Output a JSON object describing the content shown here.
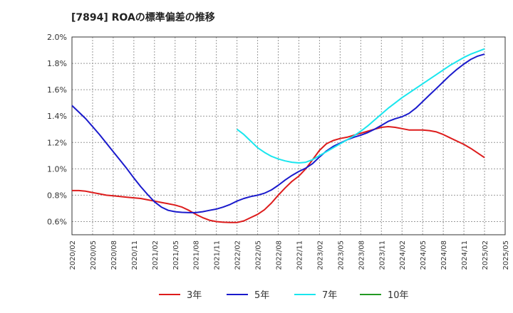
{
  "chart_data": {
    "type": "line",
    "title": "[7894]  ROAの標準偏差の推移",
    "xlabel": "",
    "ylabel": "",
    "ylim": [
      0.5,
      2.0
    ],
    "y_ticks": [
      0.6,
      0.8,
      1.0,
      1.2,
      1.4,
      1.6,
      1.8,
      2.0
    ],
    "y_tick_labels": [
      "0.6%",
      "0.8%",
      "1.0%",
      "1.2%",
      "1.4%",
      "1.6%",
      "1.8%",
      "2.0%"
    ],
    "x_tick_labels": [
      "2020/02",
      "2020/05",
      "2020/08",
      "2020/11",
      "2021/02",
      "2021/05",
      "2021/08",
      "2021/11",
      "2022/02",
      "2022/05",
      "2022/08",
      "2022/11",
      "2023/02",
      "2023/05",
      "2023/08",
      "2023/11",
      "2024/02",
      "2024/05",
      "2024/08",
      "2024/11",
      "2025/02",
      "2025/05"
    ],
    "grid": true,
    "legend_position": "bottom",
    "series": [
      {
        "name": "3年",
        "color": "#dd1c1c",
        "x": [
          "2020/02",
          "2020/03",
          "2020/04",
          "2020/05",
          "2020/06",
          "2020/07",
          "2020/08",
          "2020/09",
          "2020/10",
          "2020/11",
          "2020/12",
          "2021/01",
          "2021/02",
          "2021/03",
          "2021/04",
          "2021/05",
          "2021/06",
          "2021/07",
          "2021/08",
          "2021/09",
          "2021/10",
          "2021/11",
          "2021/12",
          "2022/01",
          "2022/02",
          "2022/03",
          "2022/04",
          "2022/05",
          "2022/06",
          "2022/07",
          "2022/08",
          "2022/09",
          "2022/10",
          "2022/11",
          "2022/12",
          "2023/01",
          "2023/02",
          "2023/03",
          "2023/04",
          "2023/05",
          "2023/06",
          "2023/07",
          "2023/08",
          "2023/09",
          "2023/10",
          "2023/11",
          "2023/12",
          "2024/01",
          "2024/02",
          "2024/03",
          "2024/04",
          "2024/05",
          "2024/06",
          "2024/07",
          "2024/08",
          "2024/09",
          "2024/10",
          "2024/11",
          "2024/12",
          "2025/01",
          "2025/02"
        ],
        "values": [
          0.835,
          0.835,
          0.83,
          0.82,
          0.81,
          0.8,
          0.795,
          0.79,
          0.785,
          0.78,
          0.775,
          0.765,
          0.755,
          0.745,
          0.735,
          0.725,
          0.71,
          0.685,
          0.655,
          0.63,
          0.61,
          0.6,
          0.595,
          0.593,
          0.593,
          0.605,
          0.63,
          0.655,
          0.69,
          0.74,
          0.8,
          0.855,
          0.905,
          0.945,
          1.0,
          1.07,
          1.14,
          1.19,
          1.215,
          1.23,
          1.24,
          1.255,
          1.27,
          1.285,
          1.3,
          1.315,
          1.32,
          1.315,
          1.305,
          1.295,
          1.295,
          1.295,
          1.29,
          1.28,
          1.26,
          1.235,
          1.21,
          1.185,
          1.155,
          1.12,
          1.085
        ]
      },
      {
        "name": "5年",
        "color": "#1a1acc",
        "x": [
          "2020/02",
          "2020/03",
          "2020/04",
          "2020/05",
          "2020/06",
          "2020/07",
          "2020/08",
          "2020/09",
          "2020/10",
          "2020/11",
          "2020/12",
          "2021/01",
          "2021/02",
          "2021/03",
          "2021/04",
          "2021/05",
          "2021/06",
          "2021/07",
          "2021/08",
          "2021/09",
          "2021/10",
          "2021/11",
          "2021/12",
          "2022/01",
          "2022/02",
          "2022/03",
          "2022/04",
          "2022/05",
          "2022/06",
          "2022/07",
          "2022/08",
          "2022/09",
          "2022/10",
          "2022/11",
          "2022/12",
          "2023/01",
          "2023/02",
          "2023/03",
          "2023/04",
          "2023/05",
          "2023/06",
          "2023/07",
          "2023/08",
          "2023/09",
          "2023/10",
          "2023/11",
          "2023/12",
          "2024/01",
          "2024/02",
          "2024/03",
          "2024/04",
          "2024/05",
          "2024/06",
          "2024/07",
          "2024/08",
          "2024/09",
          "2024/10",
          "2024/11",
          "2024/12",
          "2025/01",
          "2025/02"
        ],
        "values": [
          1.48,
          1.43,
          1.38,
          1.32,
          1.26,
          1.195,
          1.13,
          1.065,
          1.0,
          0.93,
          0.865,
          0.805,
          0.75,
          0.71,
          0.685,
          0.675,
          0.67,
          0.668,
          0.668,
          0.675,
          0.685,
          0.695,
          0.71,
          0.73,
          0.755,
          0.775,
          0.79,
          0.8,
          0.815,
          0.84,
          0.875,
          0.915,
          0.95,
          0.98,
          1.005,
          1.04,
          1.09,
          1.135,
          1.17,
          1.195,
          1.22,
          1.24,
          1.255,
          1.275,
          1.3,
          1.33,
          1.36,
          1.38,
          1.395,
          1.42,
          1.46,
          1.51,
          1.56,
          1.61,
          1.66,
          1.71,
          1.755,
          1.795,
          1.83,
          1.855,
          1.87
        ]
      },
      {
        "name": "7年",
        "color": "#1ae6ee",
        "x": [
          "2022/02",
          "2022/03",
          "2022/04",
          "2022/05",
          "2022/06",
          "2022/07",
          "2022/08",
          "2022/09",
          "2022/10",
          "2022/11",
          "2022/12",
          "2023/01",
          "2023/02",
          "2023/03",
          "2023/04",
          "2023/05",
          "2023/06",
          "2023/07",
          "2023/08",
          "2023/09",
          "2023/10",
          "2023/11",
          "2023/12",
          "2024/01",
          "2024/02",
          "2024/03",
          "2024/04",
          "2024/05",
          "2024/06",
          "2024/07",
          "2024/08",
          "2024/09",
          "2024/10",
          "2024/11",
          "2024/12",
          "2025/01",
          "2025/02"
        ],
        "values": [
          1.3,
          1.26,
          1.21,
          1.16,
          1.125,
          1.095,
          1.075,
          1.06,
          1.05,
          1.045,
          1.05,
          1.07,
          1.1,
          1.13,
          1.16,
          1.19,
          1.22,
          1.25,
          1.285,
          1.325,
          1.37,
          1.415,
          1.46,
          1.5,
          1.54,
          1.575,
          1.61,
          1.645,
          1.68,
          1.715,
          1.75,
          1.785,
          1.815,
          1.845,
          1.87,
          1.89,
          1.91
        ]
      },
      {
        "name": "10年",
        "color": "#229922",
        "x": [],
        "values": []
      }
    ]
  }
}
